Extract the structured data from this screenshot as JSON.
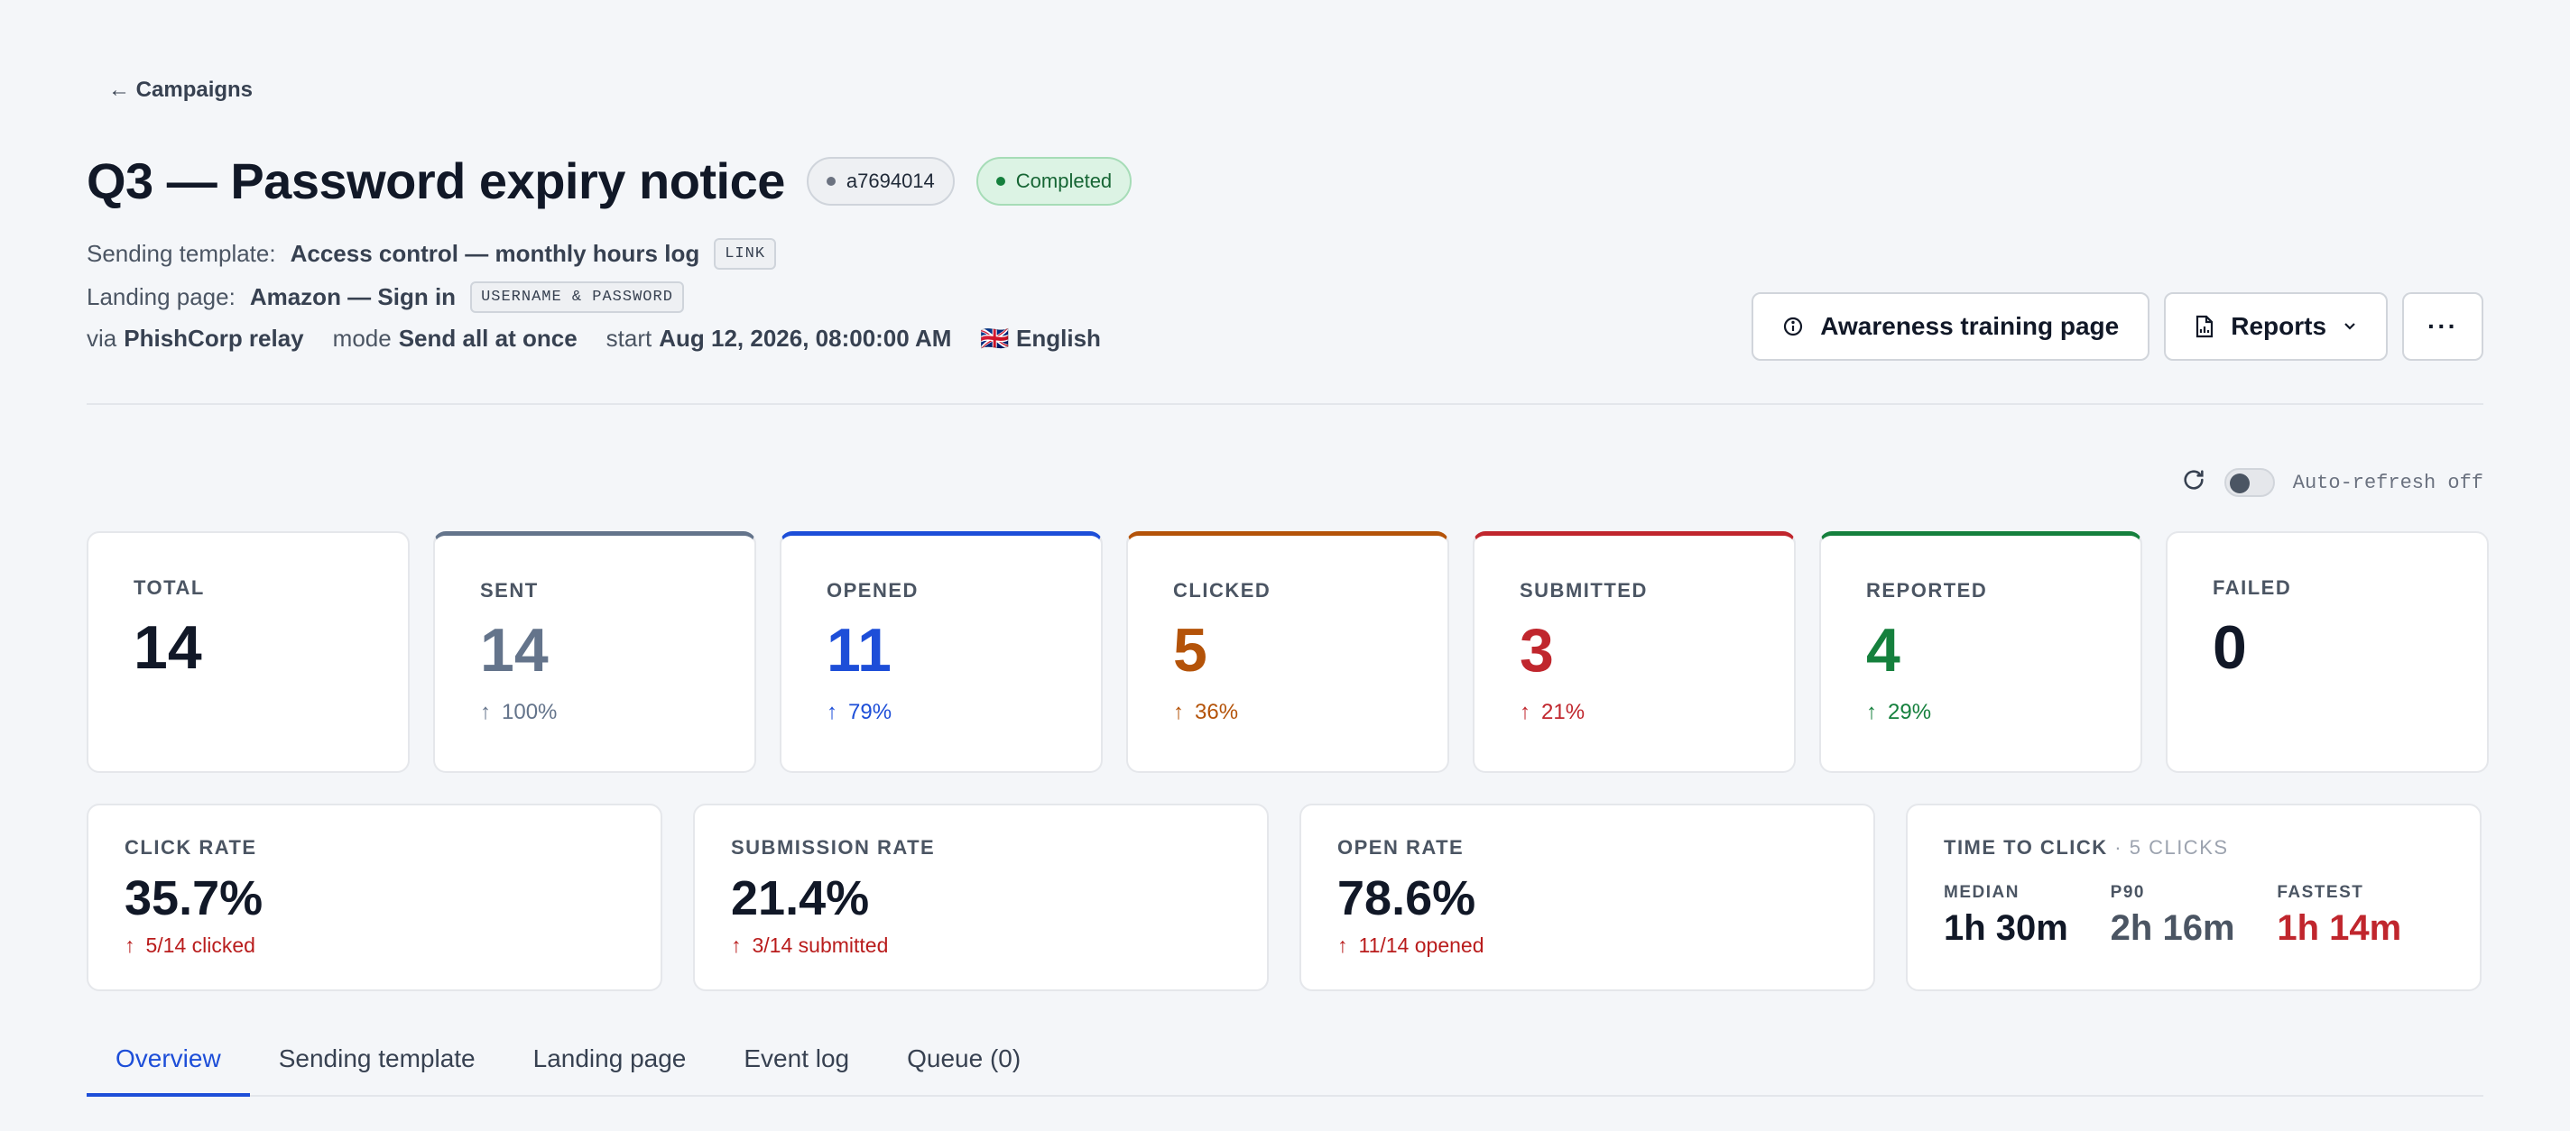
{
  "nav": {
    "back_label": "← Campaigns"
  },
  "header": {
    "title": "Q3 — Password expiry notice",
    "id_badge": "a7694014",
    "status_badge": "Completed"
  },
  "meta": {
    "template_label": "Sending template:",
    "template_value": "Access control — monthly hours log",
    "template_tag": "LINK",
    "landing_label": "Landing page:",
    "landing_value": "Amazon — Sign in",
    "landing_tag": "USERNAME & PASSWORD",
    "via_label": "via",
    "via_value": "PhishCorp relay",
    "mode_label": "mode",
    "mode_value": "Send all at once",
    "start_label": "start",
    "start_value": "Aug 12, 2026, 08:00:00 AM",
    "language": "🇬🇧 English"
  },
  "actions": {
    "awareness_label": "Awareness training page",
    "reports_label": "Reports",
    "more_label": "···"
  },
  "refresh": {
    "label": "Auto-refresh off",
    "enabled": false
  },
  "stats": [
    {
      "label": "TOTAL",
      "value": "14",
      "pct": "",
      "color": "#111827"
    },
    {
      "label": "SENT",
      "value": "14",
      "pct": "100%",
      "color": "#64748b"
    },
    {
      "label": "OPENED",
      "value": "11",
      "pct": "79%",
      "color": "#1d4ed8"
    },
    {
      "label": "CLICKED",
      "value": "5",
      "pct": "36%",
      "color": "#b45309"
    },
    {
      "label": "SUBMITTED",
      "value": "3",
      "pct": "21%",
      "color": "#c0262d"
    },
    {
      "label": "REPORTED",
      "value": "4",
      "pct": "29%",
      "color": "#15803d"
    },
    {
      "label": "FAILED",
      "value": "0",
      "pct": "",
      "color": "#111827"
    }
  ],
  "rates": [
    {
      "label": "CLICK RATE",
      "value": "35.7%",
      "sub": "5/14 clicked"
    },
    {
      "label": "SUBMISSION RATE",
      "value": "21.4%",
      "sub": "3/14 submitted"
    },
    {
      "label": "OPEN RATE",
      "value": "78.6%",
      "sub": "11/14 opened"
    }
  ],
  "time_to_click": {
    "label": "TIME TO CLICK",
    "count": "· 5 CLICKS",
    "median_label": "MEDIAN",
    "median_value": "1h 30m",
    "p90_label": "P90",
    "p90_value": "2h 16m",
    "fastest_label": "FASTEST",
    "fastest_value": "1h 14m"
  },
  "tabs": [
    {
      "label": "Overview",
      "active": true
    },
    {
      "label": "Sending template",
      "active": false
    },
    {
      "label": "Landing page",
      "active": false
    },
    {
      "label": "Event log",
      "active": false
    },
    {
      "label": "Queue (0)",
      "active": false
    }
  ],
  "colors": {
    "accent": "#1d4ed8",
    "success": "#15803d",
    "danger": "#c0262d",
    "warning": "#b45309"
  }
}
